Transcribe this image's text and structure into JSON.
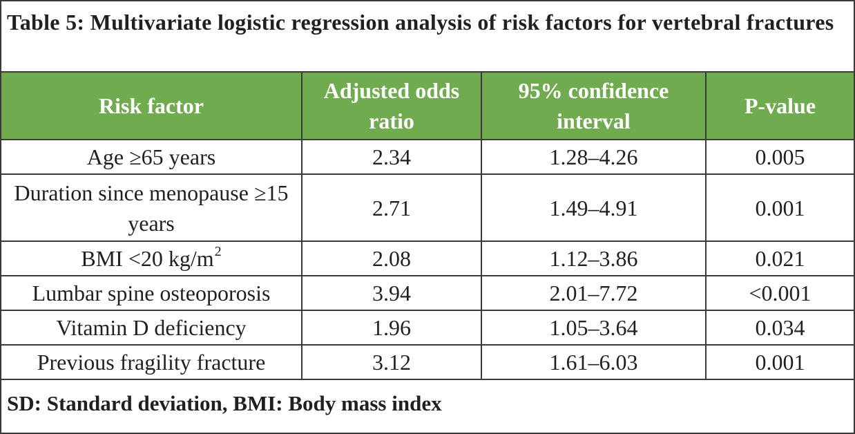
{
  "title": "Table 5: Multivariate logistic regression analysis of risk factors for vertebral fractures",
  "headers": [
    "Risk factor",
    "Adjusted odds ratio",
    "95% confidence interval",
    "P-value"
  ],
  "rows": [
    {
      "factor": "Age ≥65 years",
      "or": "2.34",
      "ci": "1.28–4.26",
      "p": "0.005"
    },
    {
      "factor": "Duration since menopause ≥15 years",
      "or": "2.71",
      "ci": "1.49–4.91",
      "p": "0.001"
    },
    {
      "factor": "BMI <20 kg/m",
      "factor_sup": "2",
      "or": "2.08",
      "ci": "1.12–3.86",
      "p": "0.021"
    },
    {
      "factor": "Lumbar spine osteoporosis",
      "or": "3.94",
      "ci": "2.01–7.72",
      "p": "<0.001"
    },
    {
      "factor": "Vitamin D deficiency",
      "or": "1.96",
      "ci": "1.05–3.64",
      "p": "0.034"
    },
    {
      "factor": "Previous fragility fracture",
      "or": "3.12",
      "ci": "1.61–6.03",
      "p": "0.001"
    }
  ],
  "footnote": "SD: Standard deviation, BMI: Body mass index",
  "colors": {
    "header_bg": "#70ac4f",
    "border": "#3a3a3a"
  }
}
